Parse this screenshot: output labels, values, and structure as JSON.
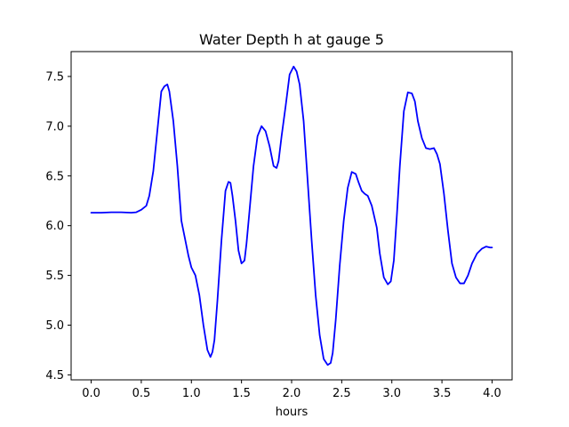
{
  "chart_data": {
    "type": "line",
    "title": "Water Depth h at gauge 5",
    "xlabel": "hours",
    "ylabel": "",
    "xlim": [
      -0.2,
      4.2
    ],
    "ylim": [
      4.45,
      7.75
    ],
    "xticks": [
      0.0,
      0.5,
      1.0,
      1.5,
      2.0,
      2.5,
      3.0,
      3.5,
      4.0
    ],
    "xtick_labels": [
      "0.0",
      "0.5",
      "1.0",
      "1.5",
      "2.0",
      "2.5",
      "3.0",
      "3.5",
      "4.0"
    ],
    "yticks": [
      4.5,
      5.0,
      5.5,
      6.0,
      6.5,
      7.0,
      7.5
    ],
    "ytick_labels": [
      "4.5",
      "5.0",
      "5.5",
      "6.0",
      "6.5",
      "7.0",
      "7.5"
    ],
    "grid": false,
    "series": [
      {
        "color": "#0000ff",
        "x": [
          0.0,
          0.1,
          0.2,
          0.3,
          0.4,
          0.45,
          0.5,
          0.55,
          0.58,
          0.62,
          0.66,
          0.7,
          0.73,
          0.76,
          0.78,
          0.82,
          0.86,
          0.9,
          0.93,
          0.97,
          1.0,
          1.04,
          1.08,
          1.12,
          1.16,
          1.19,
          1.21,
          1.23,
          1.26,
          1.3,
          1.34,
          1.37,
          1.39,
          1.41,
          1.44,
          1.47,
          1.5,
          1.53,
          1.55,
          1.58,
          1.62,
          1.66,
          1.7,
          1.74,
          1.78,
          1.82,
          1.85,
          1.87,
          1.9,
          1.94,
          1.98,
          2.02,
          2.05,
          2.08,
          2.12,
          2.16,
          2.2,
          2.24,
          2.28,
          2.32,
          2.36,
          2.39,
          2.41,
          2.44,
          2.48,
          2.52,
          2.56,
          2.6,
          2.64,
          2.67,
          2.7,
          2.73,
          2.76,
          2.8,
          2.85,
          2.88,
          2.92,
          2.96,
          2.99,
          3.02,
          3.05,
          3.08,
          3.12,
          3.16,
          3.2,
          3.23,
          3.26,
          3.3,
          3.34,
          3.38,
          3.42,
          3.45,
          3.48,
          3.52,
          3.56,
          3.6,
          3.64,
          3.68,
          3.72,
          3.76,
          3.8,
          3.85,
          3.9,
          3.94,
          3.98,
          4.0
        ],
        "y": [
          6.13,
          6.13,
          6.135,
          6.135,
          6.13,
          6.135,
          6.16,
          6.2,
          6.3,
          6.55,
          6.95,
          7.35,
          7.4,
          7.42,
          7.35,
          7.05,
          6.6,
          6.05,
          5.9,
          5.7,
          5.58,
          5.5,
          5.3,
          5.0,
          4.75,
          4.68,
          4.73,
          4.85,
          5.25,
          5.85,
          6.35,
          6.44,
          6.43,
          6.3,
          6.05,
          5.75,
          5.62,
          5.65,
          5.82,
          6.15,
          6.6,
          6.9,
          7.0,
          6.95,
          6.8,
          6.6,
          6.58,
          6.65,
          6.9,
          7.2,
          7.52,
          7.6,
          7.55,
          7.42,
          7.05,
          6.45,
          5.85,
          5.3,
          4.9,
          4.66,
          4.6,
          4.62,
          4.72,
          5.05,
          5.6,
          6.05,
          6.38,
          6.54,
          6.52,
          6.43,
          6.35,
          6.32,
          6.3,
          6.2,
          5.98,
          5.72,
          5.48,
          5.41,
          5.44,
          5.65,
          6.1,
          6.6,
          7.15,
          7.34,
          7.33,
          7.25,
          7.05,
          6.88,
          6.78,
          6.77,
          6.78,
          6.72,
          6.62,
          6.32,
          5.95,
          5.62,
          5.48,
          5.42,
          5.42,
          5.5,
          5.62,
          5.72,
          5.77,
          5.79,
          5.78,
          5.78
        ]
      }
    ]
  }
}
